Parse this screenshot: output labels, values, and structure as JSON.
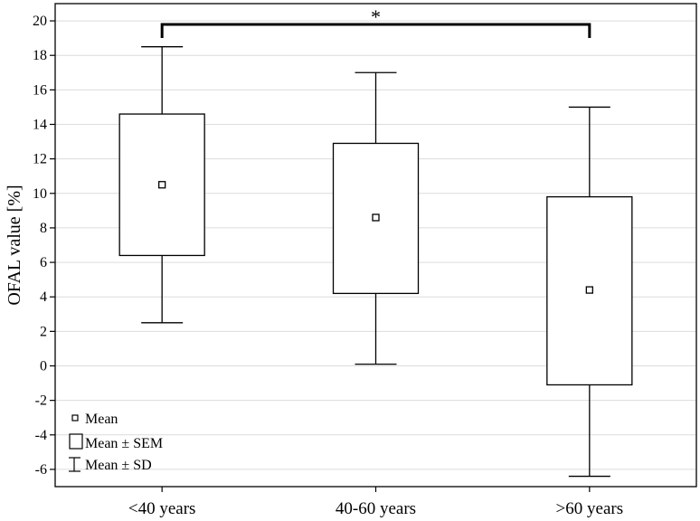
{
  "chart_data": {
    "type": "box",
    "categories": [
      "<40 years",
      "40-60 years",
      ">60 years"
    ],
    "series": [
      {
        "name": "OFAL value",
        "mean": [
          10.5,
          8.6,
          4.4
        ],
        "sem_low": [
          6.4,
          4.2,
          -1.1
        ],
        "sem_high": [
          14.6,
          12.9,
          9.8
        ],
        "sd_low": [
          2.5,
          0.1,
          -6.4
        ],
        "sd_high": [
          18.5,
          17.0,
          15.0
        ]
      }
    ],
    "ylabel": "OFAL value [%]",
    "xlabel": "",
    "ylim": [
      -7,
      21
    ],
    "yticks": [
      -6,
      -4,
      -2,
      0,
      2,
      4,
      6,
      8,
      10,
      12,
      14,
      16,
      18,
      20
    ],
    "grid": true,
    "legend": {
      "placement": "bottom-left",
      "items": [
        "Mean",
        "Mean ± SEM",
        "Mean ± SD"
      ]
    },
    "significance": {
      "from": "<40 years",
      "to": ">60 years",
      "label": "*"
    }
  }
}
